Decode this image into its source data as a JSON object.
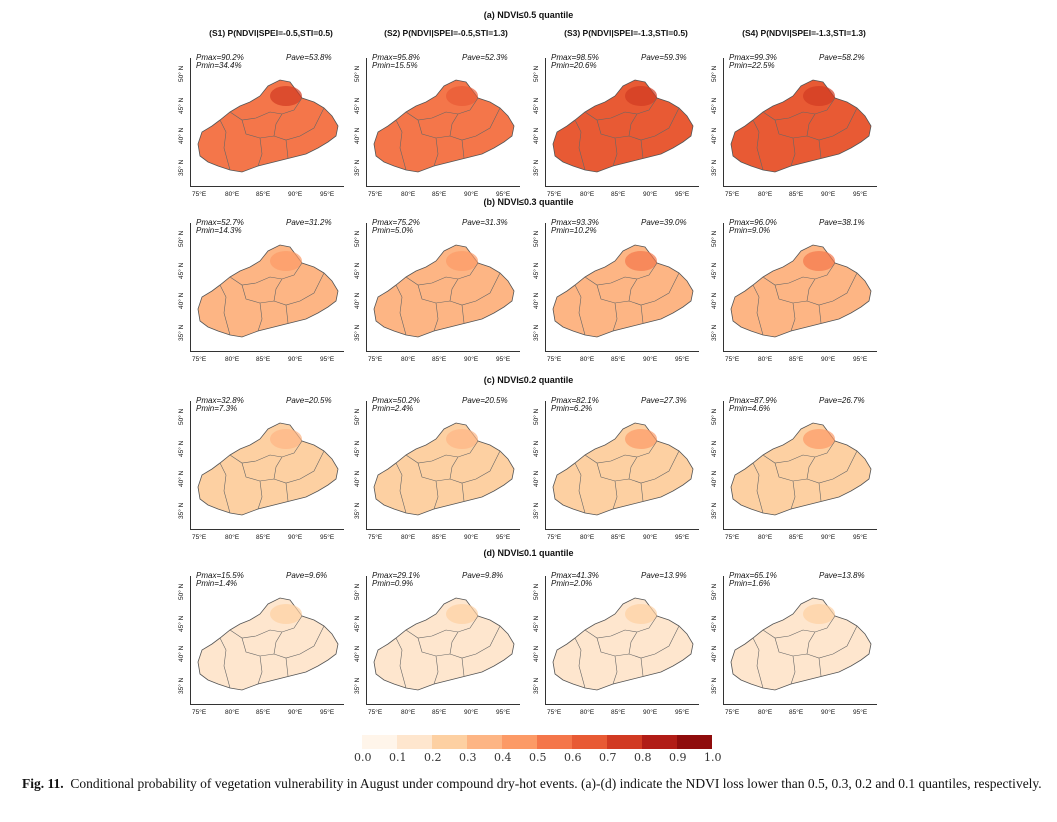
{
  "figure": {
    "row_titles": [
      "(a) NDVI≤0.5 quantile",
      "(b) NDVI≤0.3 quantile",
      "(c) NDVI≤0.2 quantile",
      "(d) NDVI≤0.1 quantile"
    ],
    "col_titles": [
      "(S1) P(NDVI|SPEI=-0.5,STI=0.5)",
      "(S2) P(NDVI|SPEI=-0.5,STI=1.3)",
      "(S3) P(NDVI|SPEI=-1.3,STI=0.5)",
      "(S4) P(NDVI|SPEI=-1.3,STI=1.3)"
    ],
    "lat_labels": [
      "35° N",
      "40° N",
      "45° N",
      "50° N"
    ],
    "lon_labels": [
      "75°E",
      "80°E",
      "85°E",
      "90°E",
      "95°E"
    ],
    "panels": [
      [
        {
          "pmax": "Pmax=90.2%",
          "pmin": "Pmin=34.4%",
          "pave": "Pave=53.8%",
          "level": 0.55
        },
        {
          "pmax": "Pmax=95.8%",
          "pmin": "Pmin=15.5%",
          "pave": "Pave=52.3%",
          "level": 0.52
        },
        {
          "pmax": "Pmax=98.5%",
          "pmin": "Pmin=20.6%",
          "pave": "Pave=59.3%",
          "level": 0.62
        },
        {
          "pmax": "Pmax=99.3%",
          "pmin": "Pmin=22.5%",
          "pave": "Pave=58.2%",
          "level": 0.6
        }
      ],
      [
        {
          "pmax": "Pmax=52.7%",
          "pmin": "Pmin=14.3%",
          "pave": "Pave=31.2%",
          "level": 0.31
        },
        {
          "pmax": "Pmax=75.2%",
          "pmin": "Pmin=5.0%",
          "pave": "Pave=31.3%",
          "level": 0.31
        },
        {
          "pmax": "Pmax=93.3%",
          "pmin": "Pmin=10.2%",
          "pave": "Pave=39.0%",
          "level": 0.39
        },
        {
          "pmax": "Pmax=96.0%",
          "pmin": "Pmin=9.0%",
          "pave": "Pave=38.1%",
          "level": 0.38
        }
      ],
      [
        {
          "pmax": "Pmax=32.8%",
          "pmin": "Pmin=7.3%",
          "pave": "Pave=20.5%",
          "level": 0.2
        },
        {
          "pmax": "Pmax=50.2%",
          "pmin": "Pmin=2.4%",
          "pave": "Pave=20.5%",
          "level": 0.2
        },
        {
          "pmax": "Pmax=82.1%",
          "pmin": "Pmin=6.2%",
          "pave": "Pave=27.3%",
          "level": 0.27
        },
        {
          "pmax": "Pmax=87.9%",
          "pmin": "Pmin=4.6%",
          "pave": "Pave=26.7%",
          "level": 0.27
        }
      ],
      [
        {
          "pmax": "Pmax=15.5%",
          "pmin": "Pmin=1.4%",
          "pave": "Pave=9.6%",
          "level": 0.1
        },
        {
          "pmax": "Pmax=29.1%",
          "pmin": "Pmin=0.9%",
          "pave": "Pave=9.8%",
          "level": 0.1
        },
        {
          "pmax": "Pmax=41.3%",
          "pmin": "Pmin=2.0%",
          "pave": "Pave=13.9%",
          "level": 0.14
        },
        {
          "pmax": "Pmax=65.1%",
          "pmin": "Pmin=1.6%",
          "pave": "Pave=13.8%",
          "level": 0.14
        }
      ]
    ],
    "colorbar": {
      "ticks": [
        "0.0",
        "0.1",
        "0.2",
        "0.3",
        "0.4",
        "0.5",
        "0.6",
        "0.7",
        "0.8",
        "0.9",
        "1.0"
      ],
      "colors": [
        "#fff5ea",
        "#fee6ce",
        "#fdd0a2",
        "#fdb584",
        "#fc9a66",
        "#f4764a",
        "#e85a34",
        "#d13a22",
        "#b11c16",
        "#8f0c0c"
      ]
    }
  },
  "caption": {
    "label": "Fig. 11.",
    "text": "Conditional probability of vegetation vulnerability in August under compound dry-hot events. (a)-(d) indicate the NDVI loss lower than 0.5, 0.3, 0.2 and 0.1 quantiles, respectively."
  }
}
